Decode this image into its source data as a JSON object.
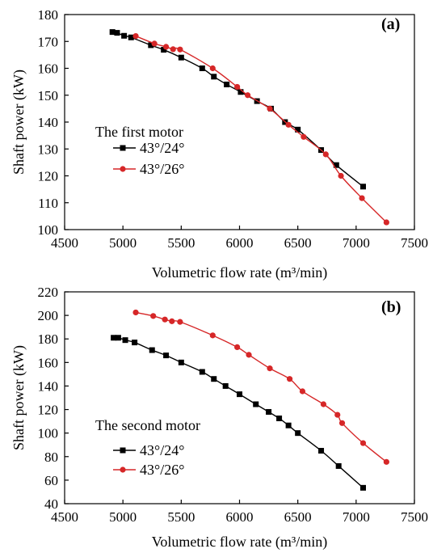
{
  "chart_data": [
    {
      "type": "line",
      "panel_label": "(a)",
      "xlabel": "Volumetric flow rate (m³/min)",
      "ylabel": "Shaft power (kW)",
      "xlim": [
        4500,
        7500
      ],
      "ylim": [
        100,
        180
      ],
      "xticks": [
        4500,
        5000,
        5500,
        6000,
        6500,
        7000,
        7500
      ],
      "yticks": [
        100,
        110,
        120,
        130,
        140,
        150,
        160,
        170,
        180
      ],
      "grid": false,
      "legend_title": "The first motor",
      "legend_position": "middle-left",
      "series": [
        {
          "name": "43°/24°",
          "color": "#000000",
          "marker": "square",
          "x": [
            4910,
            4950,
            5010,
            5070,
            5240,
            5350,
            5500,
            5680,
            5780,
            5890,
            6010,
            6150,
            6270,
            6390,
            6500,
            6700,
            6830,
            7060
          ],
          "y": [
            173.5,
            173.2,
            172.1,
            171.5,
            168.6,
            166.9,
            164.0,
            160.0,
            156.9,
            154.0,
            151.2,
            147.8,
            145.0,
            140.0,
            137.2,
            129.6,
            124.0,
            116.0
          ]
        },
        {
          "name": "43°/26°",
          "color": "#d62728",
          "marker": "circle",
          "x": [
            5110,
            5270,
            5370,
            5430,
            5490,
            5770,
            5980,
            6070,
            6260,
            6420,
            6550,
            6740,
            6870,
            7050,
            7260
          ],
          "y": [
            172.0,
            169.2,
            168.0,
            167.1,
            167.0,
            160.0,
            153.1,
            150.0,
            145.0,
            139.0,
            134.5,
            128.0,
            120.0,
            111.7,
            102.7
          ]
        }
      ]
    },
    {
      "type": "line",
      "panel_label": "(b)",
      "xlabel": "Volumetric flow rate (m³/min)",
      "ylabel": "Shaft power (kW)",
      "xlim": [
        4500,
        7500
      ],
      "ylim": [
        40,
        220
      ],
      "xticks": [
        4500,
        5000,
        5500,
        6000,
        6500,
        7000,
        7500
      ],
      "yticks": [
        40,
        60,
        80,
        100,
        120,
        140,
        160,
        180,
        200,
        220
      ],
      "grid": false,
      "legend_title": "The second motor",
      "legend_position": "lower-left",
      "series": [
        {
          "name": "43°/24°",
          "color": "#000000",
          "marker": "square",
          "x": [
            4920,
            4960,
            5020,
            5100,
            5250,
            5370,
            5500,
            5680,
            5780,
            5880,
            6000,
            6140,
            6250,
            6340,
            6420,
            6500,
            6700,
            6850,
            7060
          ],
          "y": [
            181.0,
            181.0,
            179.0,
            177.0,
            170.5,
            166.0,
            160.0,
            152.0,
            146.0,
            140.0,
            133.0,
            124.5,
            118.0,
            112.5,
            106.5,
            100.0,
            85.0,
            72.0,
            53.5
          ]
        },
        {
          "name": "43°/26°",
          "color": "#d62728",
          "marker": "circle",
          "x": [
            5110,
            5260,
            5360,
            5420,
            5490,
            5770,
            5980,
            6080,
            6260,
            6430,
            6540,
            6720,
            6840,
            6880,
            7060,
            7260
          ],
          "y": [
            202.5,
            199.5,
            196.5,
            195.0,
            194.5,
            183.0,
            173.0,
            166.5,
            155.0,
            146.0,
            135.5,
            124.5,
            115.5,
            108.5,
            91.5,
            75.5
          ]
        }
      ]
    }
  ]
}
